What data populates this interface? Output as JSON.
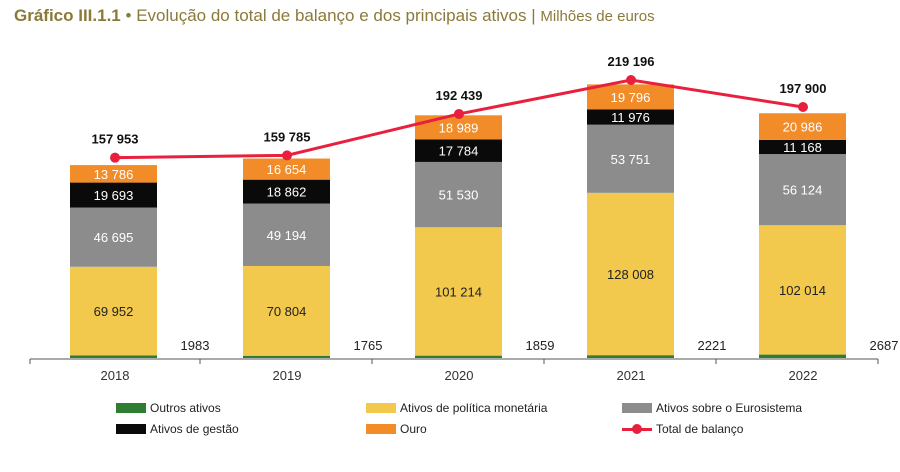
{
  "header": {
    "figure_number": "Gráfico III.1.1",
    "bullet": "•",
    "title": "Evolução do total de balanço e dos principais ativos",
    "separator": "|",
    "unit": "Milhões de euros"
  },
  "chart_data": {
    "type": "bar",
    "stacked": true,
    "categories": [
      "2018",
      "2019",
      "2020",
      "2021",
      "2022"
    ],
    "ylim": [
      0,
      240000
    ],
    "grid": false,
    "legend_position": "bottom",
    "series": [
      {
        "name": "Outros ativos",
        "color": "#2e7d32",
        "values": [
          1983,
          1765,
          1859,
          2221,
          2687
        ],
        "labels": [
          "1983",
          "1765",
          "1859",
          "2221",
          "2687"
        ]
      },
      {
        "name": "Ativos de política monetária",
        "color": "#f2c94c",
        "values": [
          69952,
          70804,
          101214,
          128008,
          102014
        ],
        "labels": [
          "69 952",
          "70 804",
          "101 214",
          "128 008",
          "102 014"
        ]
      },
      {
        "name": "Ativos sobre o Eurosistema",
        "color": "#8c8c8c",
        "values": [
          46695,
          49194,
          51530,
          53751,
          56124
        ],
        "labels": [
          "46 695",
          "49 194",
          "51 530",
          "53 751",
          "56 124"
        ]
      },
      {
        "name": "Ativos de gestão",
        "color": "#0a0a0a",
        "values": [
          19693,
          18862,
          17784,
          11976,
          11168
        ],
        "labels": [
          "19 693",
          "18 862",
          "17 784",
          "11 976",
          "11 168"
        ]
      },
      {
        "name": "Ouro",
        "color": "#f28c28",
        "values": [
          13786,
          16654,
          18989,
          19796,
          20986
        ],
        "labels": [
          "13 786",
          "16 654",
          "18 989",
          "19 796",
          "20 986"
        ]
      }
    ],
    "line": {
      "name": "Total de balanço",
      "color": "#e8203e",
      "values": [
        157953,
        159785,
        192439,
        219196,
        197900
      ],
      "labels": [
        "157 953",
        "159 785",
        "192 439",
        "219 196",
        "197 900"
      ]
    }
  }
}
